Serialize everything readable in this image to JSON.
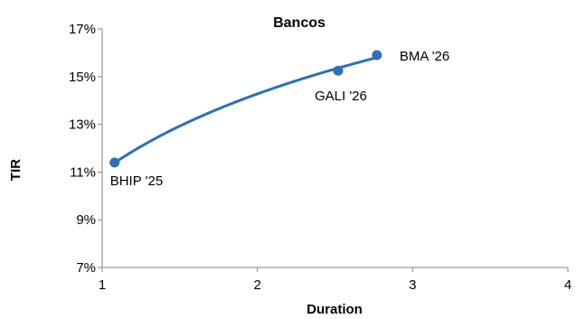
{
  "chart_data": {
    "type": "scatter",
    "title": "Bancos",
    "xlabel": "Duration",
    "ylabel": "TIR",
    "xlim": [
      1,
      4
    ],
    "ylim": [
      7,
      17
    ],
    "xticks": [
      1,
      2,
      3,
      4
    ],
    "yticks": [
      7,
      9,
      11,
      13,
      15,
      17
    ],
    "ytick_suffix": "%",
    "grid": false,
    "legend": "none",
    "colors": {
      "marker": "#2f6fb5",
      "curve": "#2f6fb5",
      "axis": "#868686"
    },
    "series": [
      {
        "points": [
          {
            "label": "BHIP '25",
            "x": 1.08,
            "y": 11.4
          },
          {
            "label": "GALI '26",
            "x": 2.52,
            "y": 15.25
          },
          {
            "label": "BMA '26",
            "x": 2.77,
            "y": 15.9
          }
        ],
        "trendline": "logarithmic"
      }
    ]
  }
}
